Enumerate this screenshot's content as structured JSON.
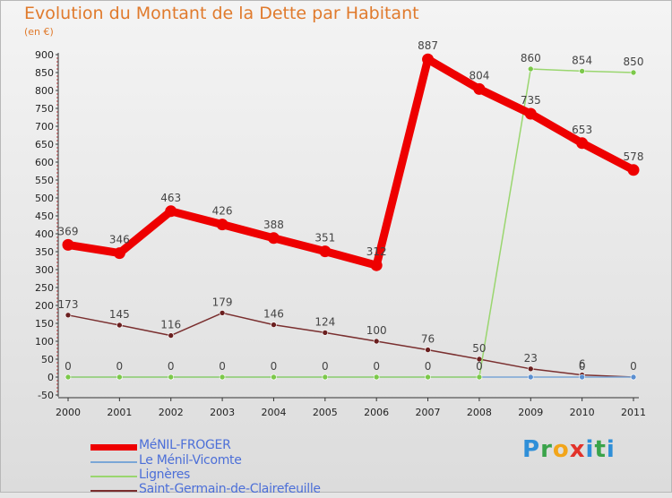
{
  "title": "Evolution du Montant de la Dette par Habitant",
  "unit": "(en €)",
  "brand": "Proxiti",
  "chart_data": {
    "type": "line",
    "x": [
      "2000",
      "2001",
      "2002",
      "2003",
      "2004",
      "2005",
      "2006",
      "2007",
      "2008",
      "2009",
      "2010",
      "2011"
    ],
    "ylim": [
      -50,
      900
    ],
    "yticks": [
      -50,
      0,
      50,
      100,
      150,
      200,
      250,
      300,
      350,
      400,
      450,
      500,
      550,
      600,
      650,
      700,
      750,
      800,
      850,
      900
    ],
    "grid": false,
    "legend_position": "bottom-left",
    "series": [
      {
        "name": "MéNIL-FROGER",
        "color": "#ee0000",
        "marker_color": "#ee0000",
        "values": [
          369,
          346,
          463,
          426,
          388,
          351,
          312,
          887,
          804,
          735,
          653,
          578
        ],
        "labels": [
          "369",
          "346",
          "463",
          "426",
          "388",
          "351",
          "312",
          "887",
          "804",
          "735",
          "653",
          "578"
        ]
      },
      {
        "name": "Le Ménil-Vicomte",
        "color": "#7aa6d6",
        "marker_color": "#5b8fd0",
        "values": [
          0,
          0,
          0,
          0,
          0,
          0,
          0,
          0,
          0,
          0,
          0,
          0
        ],
        "labels": [
          "",
          "",
          "",
          "",
          "",
          "",
          "",
          "",
          "",
          "",
          "0",
          ""
        ]
      },
      {
        "name": "Lignères",
        "color": "#9ad66f",
        "marker_color": "#7cc84a",
        "values": [
          0,
          0,
          0,
          0,
          0,
          0,
          0,
          0,
          0,
          860,
          854,
          850
        ],
        "labels": [
          "0",
          "0",
          "0",
          "0",
          "0",
          "0",
          "0",
          "0",
          "0",
          "860",
          "854",
          "850"
        ]
      },
      {
        "name": "Saint-Germain-de-Clairefeuille",
        "color": "#7a2f2f",
        "marker_color": "#6a1f1f",
        "values": [
          173,
          145,
          116,
          179,
          146,
          124,
          100,
          76,
          50,
          23,
          6,
          0
        ],
        "labels": [
          "173",
          "145",
          "116",
          "179",
          "146",
          "124",
          "100",
          "76",
          "50",
          "23",
          "6",
          "0"
        ]
      }
    ]
  }
}
